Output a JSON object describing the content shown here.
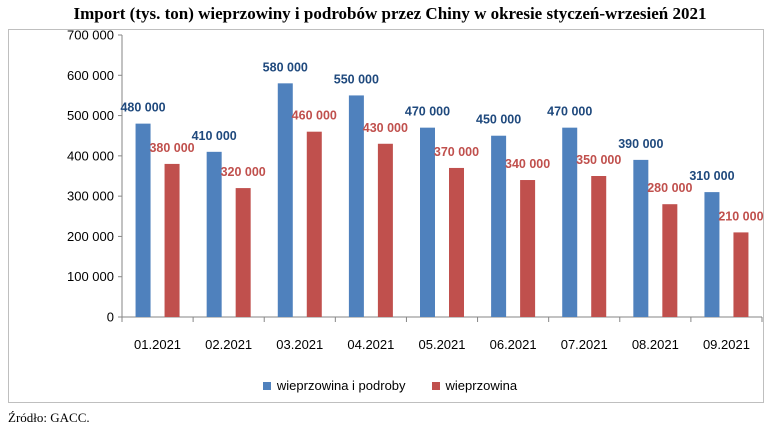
{
  "title": "Import (tys. ton) wieprzowiny i podrobów przez Chiny w okresie styczeń-wrzesień  2021",
  "source": "Źródło: GACC.",
  "chart_data": {
    "type": "bar",
    "title": "Import (tys. ton) wieprzowiny i podrobów przez Chiny w okresie styczeń-wrzesień  2021",
    "categories": [
      "01.2021",
      "02.2021",
      "03.2021",
      "04.2021",
      "05.2021",
      "06.2021",
      "07.2021",
      "08.2021",
      "09.2021"
    ],
    "series": [
      {
        "name": "wieprzowina i podroby",
        "color": "#4f81bd",
        "label_color": "#1f497d",
        "values": [
          480000,
          410000,
          580000,
          550000,
          470000,
          450000,
          470000,
          390000,
          310000
        ],
        "labels": [
          "480 000",
          "410 000",
          "580 000",
          "550 000",
          "470 000",
          "450 000",
          "470 000",
          "390 000",
          "310 000"
        ]
      },
      {
        "name": "wieprzowina",
        "color": "#c0504d",
        "label_color": "#c0504d",
        "values": [
          380000,
          320000,
          460000,
          430000,
          370000,
          340000,
          350000,
          280000,
          210000
        ],
        "labels": [
          "380 000",
          "320 000",
          "460 000",
          "430 000",
          "370 000",
          "340 000",
          "350 000",
          "280 000",
          "210 000"
        ]
      }
    ],
    "ylim": [
      0,
      700000
    ],
    "yticks": [
      0,
      100000,
      200000,
      300000,
      400000,
      500000,
      600000,
      700000
    ],
    "ytick_labels": [
      "0",
      "100 000",
      "200 000",
      "300 000",
      "400 000",
      "500 000",
      "600 000",
      "700 000"
    ],
    "grid": false,
    "legend": "bottom"
  }
}
